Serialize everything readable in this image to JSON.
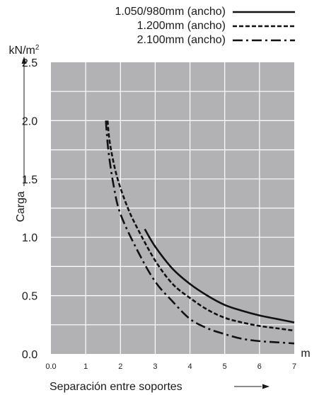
{
  "chart_data": {
    "type": "line",
    "title": "",
    "xlabel": "Separación entre soportes",
    "ylabel": "Carga",
    "x_unit": "m",
    "y_unit": "kN/m²",
    "xlim": [
      0,
      7
    ],
    "ylim": [
      0,
      2.5
    ],
    "grid": true,
    "legend_position": "top-right",
    "x_ticks": [
      "0.0",
      "1",
      "2",
      "3",
      "4",
      "5",
      "6",
      "7"
    ],
    "y_ticks": [
      "0.0",
      "0.5",
      "1.0",
      "1.5",
      "2.0",
      "2.5"
    ],
    "colors": {
      "plot_background": "#b2b2b4",
      "grid": "#ffffff",
      "lines": "#111111"
    },
    "series": [
      {
        "name": "1.050/980mm (ancho)",
        "style": "solid",
        "points": [
          [
            2.7,
            1.07
          ],
          [
            3.0,
            0.92
          ],
          [
            3.5,
            0.73
          ],
          [
            4.0,
            0.6
          ],
          [
            4.5,
            0.5
          ],
          [
            5.0,
            0.42
          ],
          [
            5.5,
            0.37
          ],
          [
            6.0,
            0.33
          ],
          [
            6.5,
            0.3
          ],
          [
            7.0,
            0.27
          ]
        ]
      },
      {
        "name": "1.200mm (ancho)",
        "style": "dashed",
        "points": [
          [
            1.63,
            2.0
          ],
          [
            1.7,
            1.8
          ],
          [
            1.9,
            1.52
          ],
          [
            2.2,
            1.26
          ],
          [
            2.5,
            1.07
          ],
          [
            3.0,
            0.8
          ],
          [
            3.5,
            0.6
          ],
          [
            4.0,
            0.48
          ],
          [
            4.5,
            0.38
          ],
          [
            5.0,
            0.31
          ],
          [
            5.5,
            0.27
          ],
          [
            6.0,
            0.24
          ],
          [
            6.5,
            0.22
          ],
          [
            7.0,
            0.2
          ]
        ]
      },
      {
        "name": "2.100mm (ancho)",
        "style": "dash-dot",
        "points": [
          [
            1.58,
            2.0
          ],
          [
            1.65,
            1.75
          ],
          [
            1.8,
            1.45
          ],
          [
            2.0,
            1.2
          ],
          [
            2.5,
            0.88
          ],
          [
            3.0,
            0.62
          ],
          [
            3.5,
            0.45
          ],
          [
            4.0,
            0.3
          ],
          [
            4.5,
            0.22
          ],
          [
            5.0,
            0.17
          ],
          [
            5.5,
            0.13
          ],
          [
            6.0,
            0.11
          ],
          [
            6.5,
            0.1
          ],
          [
            7.0,
            0.09
          ]
        ]
      }
    ]
  }
}
